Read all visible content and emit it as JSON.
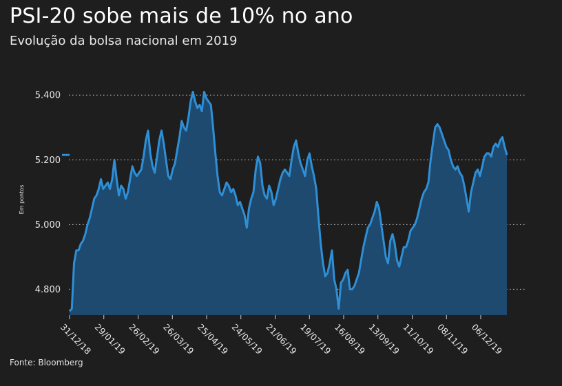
{
  "header": {
    "title": "PSI-20 sobe mais de 10% no ano",
    "subtitle": "Evolução da bolsa nacional em 2019"
  },
  "footer": {
    "source": "Fonte: Bloomberg"
  },
  "colors": {
    "line": "#2f8fd6",
    "area": "#1d4a6e",
    "background": "#1e1e1e",
    "grid": "#cfcfcf"
  },
  "chart_data": {
    "type": "area",
    "title": "PSI-20 sobe mais de 10% no ano",
    "subtitle": "Evolução da bolsa nacional em 2019",
    "ylabel": "Em pontos",
    "xlabel": "",
    "ylim": [
      4720,
      5460
    ],
    "yticks": [
      4800,
      5000,
      5200,
      5400
    ],
    "ytick_labels": [
      "4.800",
      "5.000",
      "5.200",
      "5.400"
    ],
    "xtick_labels": [
      "31/12/18",
      "29/01/19",
      "26/02/19",
      "26/03/19",
      "25/04/19",
      "24/05/19",
      "21/06/19",
      "19/07/19",
      "16/08/19",
      "13/09/19",
      "11/10/19",
      "08/11/19",
      "06/12/19"
    ],
    "grid": "horizontal dotted",
    "series": [
      {
        "values": [
          4732,
          4740,
          4880,
          4920,
          4920,
          4940,
          4950,
          4970,
          5000,
          5020,
          5050,
          5080,
          5090,
          5110,
          5140,
          5110,
          5120,
          5130,
          5110,
          5140,
          5200,
          5140,
          5090,
          5120,
          5110,
          5080,
          5100,
          5140,
          5180,
          5160,
          5150,
          5160,
          5170,
          5210,
          5260,
          5290,
          5220,
          5180,
          5160,
          5210,
          5260,
          5290,
          5250,
          5200,
          5150,
          5140,
          5170,
          5190,
          5230,
          5270,
          5320,
          5300,
          5290,
          5330,
          5380,
          5410,
          5380,
          5360,
          5370,
          5350,
          5410,
          5390,
          5380,
          5370,
          5300,
          5220,
          5150,
          5100,
          5090,
          5110,
          5130,
          5120,
          5100,
          5110,
          5090,
          5060,
          5070,
          5050,
          5030,
          4990,
          5050,
          5080,
          5100,
          5170,
          5210,
          5190,
          5120,
          5090,
          5080,
          5120,
          5100,
          5060,
          5080,
          5110,
          5140,
          5160,
          5170,
          5160,
          5150,
          5200,
          5240,
          5260,
          5220,
          5190,
          5170,
          5150,
          5200,
          5220,
          5180,
          5150,
          5110,
          5020,
          4940,
          4880,
          4840,
          4850,
          4880,
          4920,
          4830,
          4800,
          4740,
          4820,
          4830,
          4850,
          4860,
          4800,
          4800,
          4810,
          4830,
          4850,
          4890,
          4930,
          4960,
          4990,
          5000,
          5020,
          5040,
          5070,
          5050,
          5000,
          4950,
          4900,
          4880,
          4950,
          4970,
          4940,
          4890,
          4870,
          4900,
          4930,
          4930,
          4950,
          4980,
          4990,
          5000,
          5020,
          5050,
          5080,
          5100,
          5110,
          5130,
          5200,
          5250,
          5300,
          5310,
          5300,
          5280,
          5260,
          5240,
          5230,
          5200,
          5180,
          5170,
          5180,
          5160,
          5150,
          5120,
          5080,
          5040,
          5100,
          5130,
          5160,
          5170,
          5150,
          5180,
          5210,
          5220,
          5220,
          5210,
          5240,
          5250,
          5240,
          5260,
          5270,
          5240,
          5215
        ]
      }
    ]
  }
}
